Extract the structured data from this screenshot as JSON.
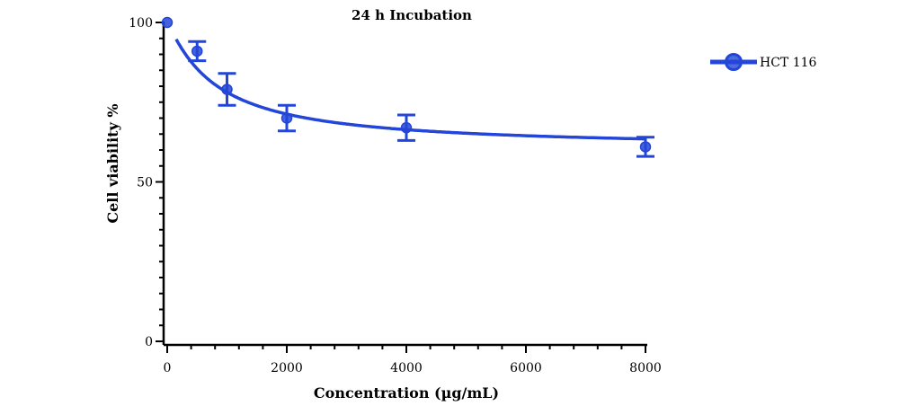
{
  "chart_data": {
    "type": "scatter",
    "title": "24 h Incubation",
    "xlabel": "Concentration (µg/mL)",
    "ylabel": "Cell viability %",
    "xlim": [
      0,
      8000
    ],
    "ylim": [
      0,
      100
    ],
    "x_ticks": [
      0,
      2000,
      4000,
      6000,
      8000
    ],
    "y_ticks": [
      0,
      50,
      100
    ],
    "x_tick_labels": [
      "0",
      "2000",
      "4000",
      "6000",
      "8000"
    ],
    "y_tick_labels": [
      "0",
      "50",
      "100"
    ],
    "grid": false,
    "legend_position": "top-right",
    "fit_curve": true,
    "series": [
      {
        "name": "HCT 116",
        "color": "#2346d8",
        "marker": "circle",
        "points": [
          {
            "x": 0,
            "y": 100,
            "err": 0
          },
          {
            "x": 500,
            "y": 91,
            "err": 3
          },
          {
            "x": 1000,
            "y": 79,
            "err": 5
          },
          {
            "x": 2000,
            "y": 70,
            "err": 4
          },
          {
            "x": 4000,
            "y": 67,
            "err": 4
          },
          {
            "x": 8000,
            "y": 61,
            "err": 3
          }
        ]
      }
    ]
  }
}
